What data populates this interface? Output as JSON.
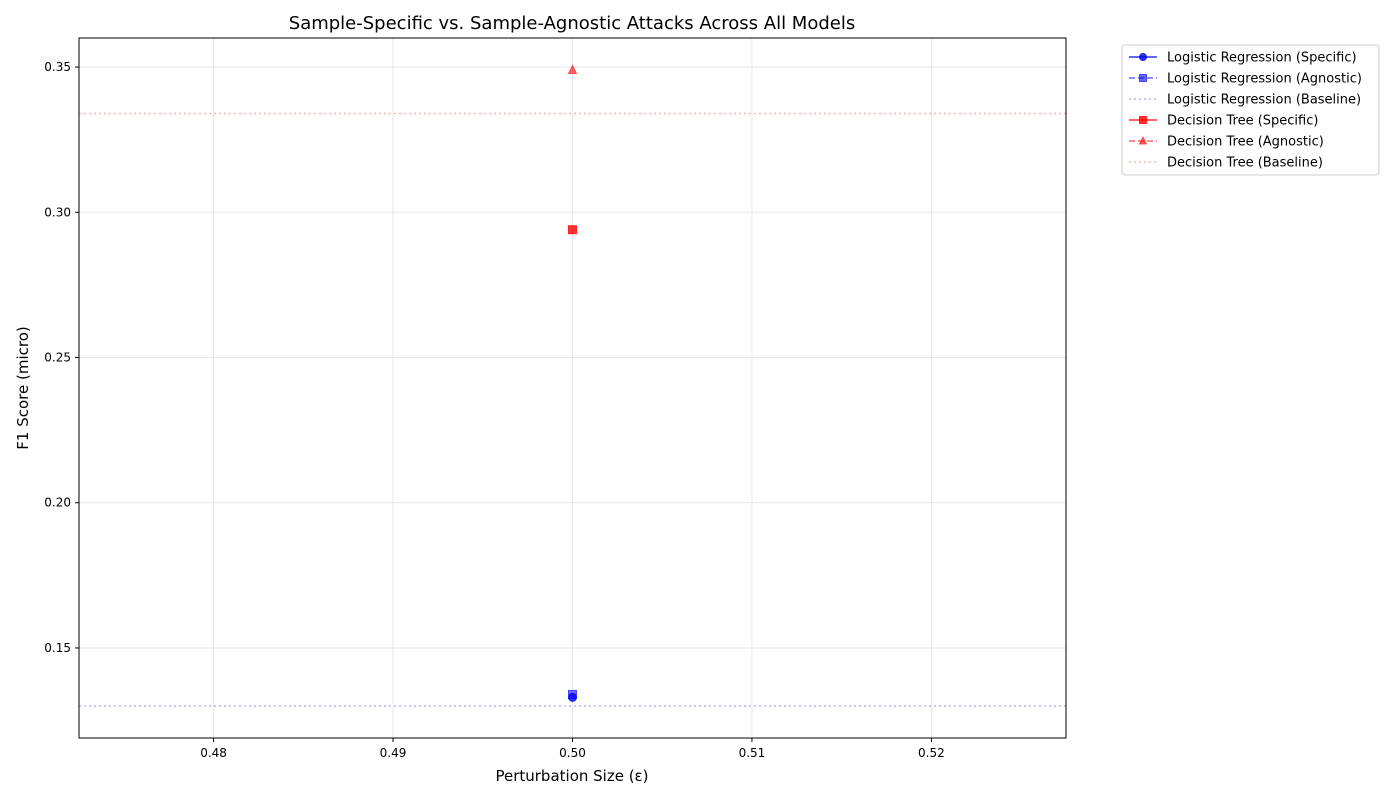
{
  "chart_data": {
    "type": "scatter",
    "title": "Sample-Specific vs. Sample-Agnostic Attacks Across All Models",
    "xlabel": "Perturbation Size (ε)",
    "ylabel": "F1 Score (micro)",
    "xlim": [
      0.4725,
      0.5275
    ],
    "ylim": [
      0.119,
      0.36
    ],
    "xticks": [
      0.48,
      0.49,
      0.5,
      0.51,
      0.52
    ],
    "xtick_labels": [
      "0.48",
      "0.49",
      "0.50",
      "0.51",
      "0.52"
    ],
    "yticks": [
      0.15,
      0.2,
      0.25,
      0.3,
      0.35
    ],
    "ytick_labels": [
      "0.15",
      "0.20",
      "0.25",
      "0.30",
      "0.35"
    ],
    "grid": true,
    "legend_position": "outside top-right",
    "series": [
      {
        "name": "Logistic Regression (Specific)",
        "kind": "points",
        "color": "#0000ff",
        "opacity": 0.8,
        "marker": "circle",
        "line": "solid",
        "x": [
          0.5
        ],
        "y": [
          0.133
        ]
      },
      {
        "name": "Logistic Regression (Agnostic)",
        "kind": "points",
        "color": "#0000ff",
        "opacity": 0.6,
        "marker": "square",
        "line": "dashed",
        "x": [
          0.5
        ],
        "y": [
          0.134
        ]
      },
      {
        "name": "Logistic Regression (Baseline)",
        "kind": "hline",
        "color": "#0000ff",
        "opacity": 0.3,
        "line": "dotted",
        "y": 0.13
      },
      {
        "name": "Decision Tree (Specific)",
        "kind": "points",
        "color": "#ff0000",
        "opacity": 0.8,
        "marker": "square",
        "line": "solid",
        "x": [
          0.5
        ],
        "y": [
          0.294
        ]
      },
      {
        "name": "Decision Tree (Agnostic)",
        "kind": "points",
        "color": "#ff0000",
        "opacity": 0.6,
        "marker": "triangle",
        "line": "dashed",
        "x": [
          0.5
        ],
        "y": [
          0.349
        ]
      },
      {
        "name": "Decision Tree (Baseline)",
        "kind": "hline",
        "color": "#ff0000",
        "opacity": 0.3,
        "line": "dotted",
        "y": 0.334
      }
    ]
  }
}
